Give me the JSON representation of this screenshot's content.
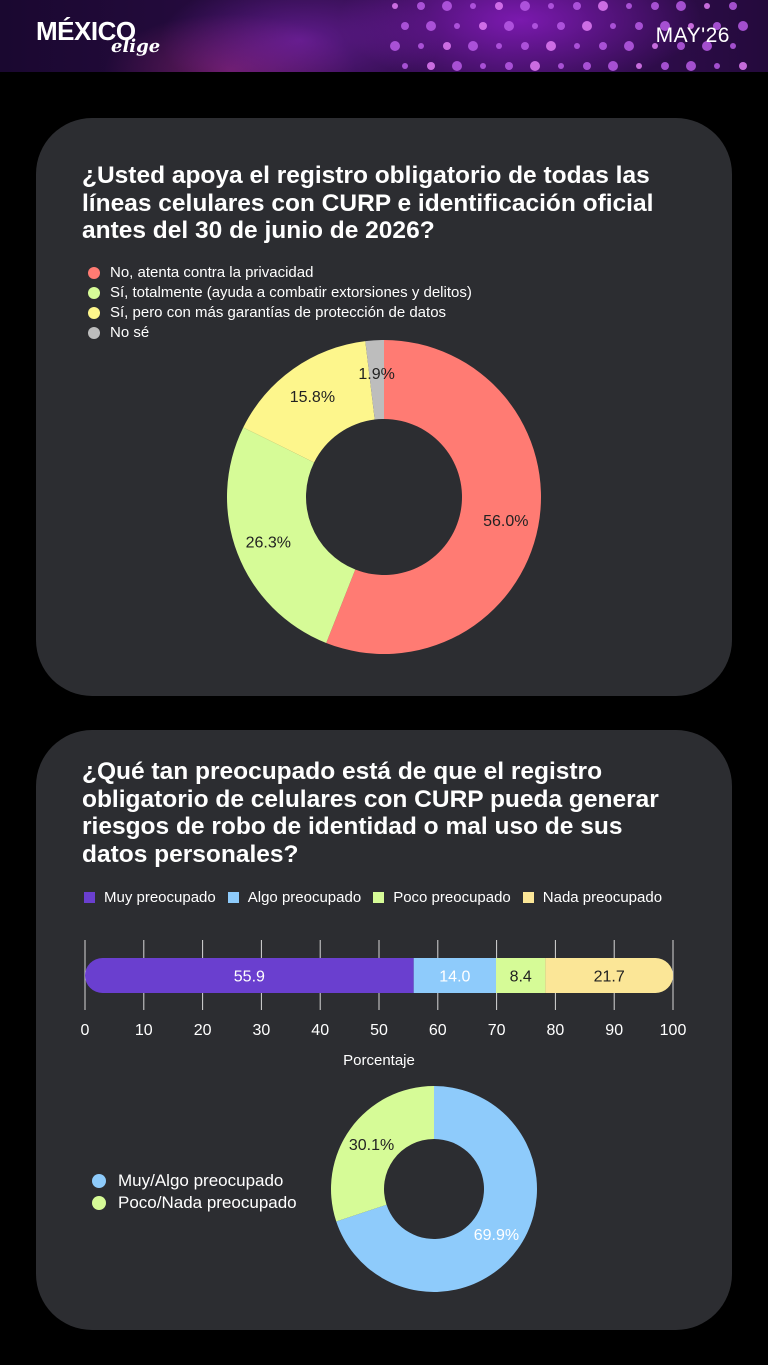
{
  "header": {
    "logo_main": "MÉXICO",
    "logo_sub": "elige",
    "date": "MAY'26"
  },
  "question1": {
    "title": "¿Usted apoya el registro obligatorio de todas las líneas celulares con CURP e identificación oficial antes del 30 de junio de 2026?"
  },
  "question2": {
    "title": "¿Qué tan preocupado está de que el registro obligatorio de celulares con CURP pueda generar riesgos de robo de identidad o mal uso de sus datos personales?"
  },
  "chart_data": [
    {
      "type": "pie",
      "donut": true,
      "legend_position": "top-left",
      "categories": [
        "No, atenta contra la privacidad",
        "Sí, totalmente (ayuda a combatir extorsiones y delitos)",
        "Sí, pero con más garantías de protección de datos",
        "No sé"
      ],
      "values": [
        56.0,
        26.3,
        15.8,
        1.9
      ],
      "labels": [
        "56.0%",
        "26.3%",
        "15.8%",
        "1.9%"
      ],
      "colors": [
        "#ff7b73",
        "#d6fb97",
        "#fdf68c",
        "#bdbdbd"
      ]
    },
    {
      "type": "bar",
      "orientation": "horizontal",
      "stacked": true,
      "legend_position": "top",
      "series": [
        {
          "name": "Muy preocupado",
          "value": 55.9,
          "label": "55.9",
          "color": "#6a3fcf"
        },
        {
          "name": "Algo preocupado",
          "value": 14.0,
          "label": "14.0",
          "color": "#8ecbfb"
        },
        {
          "name": "Poco preocupado",
          "value": 8.4,
          "label": "8.4",
          "color": "#d6fb97"
        },
        {
          "name": "Nada preocupado",
          "value": 21.7,
          "label": "21.7",
          "color": "#fbe697"
        }
      ],
      "xlim": [
        0,
        100
      ],
      "xticks": [
        "0",
        "10",
        "20",
        "30",
        "40",
        "50",
        "60",
        "70",
        "80",
        "90",
        "100"
      ],
      "xlabel": "Porcentaje",
      "grid": true
    },
    {
      "type": "pie",
      "donut": true,
      "legend_position": "left",
      "categories": [
        "Muy/Algo preocupado",
        "Poco/Nada preocupado"
      ],
      "values": [
        69.9,
        30.1
      ],
      "labels": [
        "69.9%",
        "30.1%"
      ],
      "colors": [
        "#8ecbfb",
        "#d6fb97"
      ]
    }
  ]
}
